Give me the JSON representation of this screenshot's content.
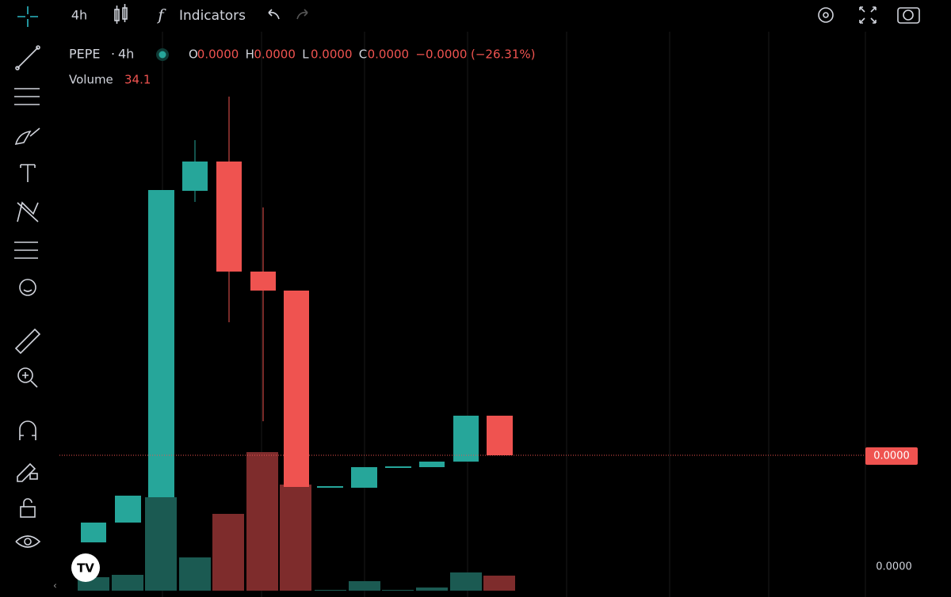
{
  "toolbar": {
    "interval": "4h",
    "indicators": "Indicators"
  },
  "legend": {
    "symbol": "PEPE",
    "interval": "4h",
    "ohlc": [
      {
        "key": "O",
        "value": "0.0000"
      },
      {
        "key": "H",
        "value": "0.0000"
      },
      {
        "key": "L",
        "value": "0.0000"
      },
      {
        "key": "C",
        "value": "0.0000"
      }
    ],
    "change": "−0.0000",
    "change_pct": "(−26.31%)",
    "volume_label": "Volume",
    "volume_value": "34.1"
  },
  "price_axis": {
    "last_price": "0.0000",
    "bottom_label": "0.0000"
  }
}
